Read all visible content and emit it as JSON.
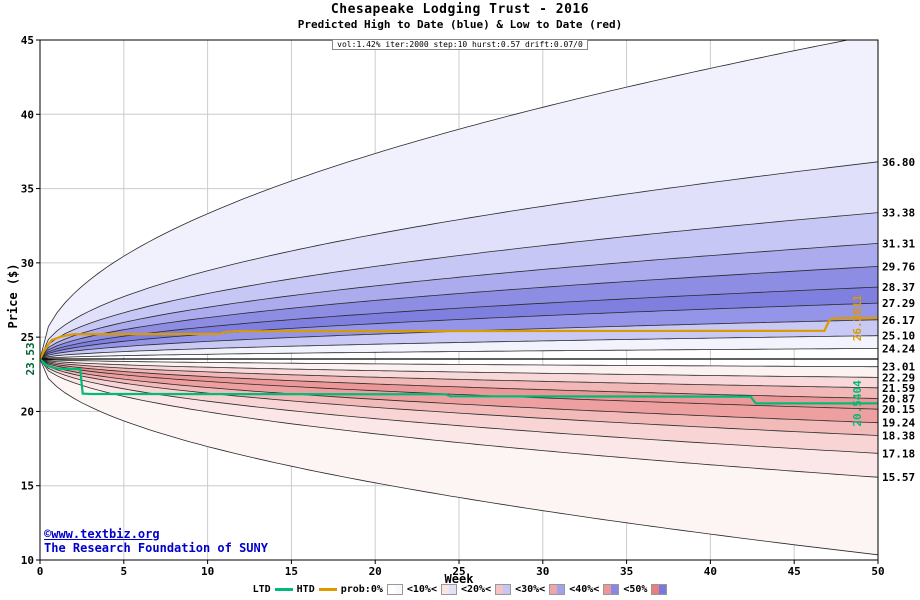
{
  "chart_data": {
    "type": "area",
    "title": "Chesapeake Lodging Trust - 2016",
    "subtitle": "Predicted High to Date (blue) &  Low to Date (red)",
    "params": "vol:1.42% iter:2000 step:10 hurst:0.57 drift:0.07/0",
    "xlabel": "Week",
    "ylabel": "Price ($)",
    "xlim": [
      0,
      50
    ],
    "ylim": [
      10,
      45
    ],
    "xticks": [
      0,
      5,
      10,
      15,
      20,
      25,
      30,
      35,
      40,
      45,
      50
    ],
    "yticks": [
      10,
      15,
      20,
      25,
      30,
      35,
      40,
      45
    ],
    "start_price": 23.53,
    "start_label": "23.53",
    "start_label_color": "#006633",
    "high_deciles": [
      {
        "label": "24.24",
        "value": 24.24
      },
      {
        "label": "25.10",
        "value": 25.1
      },
      {
        "label": "26.17",
        "value": 26.17
      },
      {
        "label": "27.29",
        "value": 27.29
      },
      {
        "label": "28.37",
        "value": 28.37
      },
      {
        "label": "29.76",
        "value": 29.76
      },
      {
        "label": "31.31",
        "value": 31.31
      },
      {
        "label": "33.38",
        "value": 33.38
      },
      {
        "label": "36.80",
        "value": 36.8
      }
    ],
    "high_extreme": 45.4,
    "low_deciles": [
      {
        "label": "23.01",
        "value": 23.01
      },
      {
        "label": "22.29",
        "value": 22.29
      },
      {
        "label": "21.59",
        "value": 21.59
      },
      {
        "label": "20.87",
        "value": 20.87
      },
      {
        "label": "20.15",
        "value": 20.15
      },
      {
        "label": "19.24",
        "value": 19.24
      },
      {
        "label": "18.38",
        "value": 18.38
      },
      {
        "label": "17.18",
        "value": 17.18
      },
      {
        "label": "15.57",
        "value": 15.57
      }
    ],
    "low_extreme": 10.35,
    "htd_line": {
      "name": "HTD",
      "final_label": "26.2811",
      "final_value": 26.2811,
      "color": "#dd9900",
      "points": [
        [
          0,
          23.53
        ],
        [
          0.3,
          24.2
        ],
        [
          0.7,
          24.8
        ],
        [
          1.3,
          25.05
        ],
        [
          2,
          25.2
        ],
        [
          10.7,
          25.22
        ],
        [
          11,
          25.33
        ],
        [
          11.8,
          25.4
        ],
        [
          46.8,
          25.43
        ],
        [
          47.1,
          26.15
        ],
        [
          47.5,
          26.28
        ],
        [
          50,
          26.2811
        ]
      ]
    },
    "ltd_line": {
      "name": "LTD",
      "final_label": "20.5404",
      "final_value": 20.5404,
      "color": "#00bb77",
      "points": [
        [
          0,
          23.53
        ],
        [
          0.4,
          23.1
        ],
        [
          0.9,
          22.9
        ],
        [
          1.4,
          22.86
        ],
        [
          2.4,
          22.85
        ],
        [
          2.55,
          21.2
        ],
        [
          3,
          21.17
        ],
        [
          24.2,
          21.15
        ],
        [
          24.5,
          21.02
        ],
        [
          42.4,
          21.0
        ],
        [
          42.7,
          20.55
        ],
        [
          43.5,
          20.54
        ],
        [
          50,
          20.5404
        ]
      ]
    },
    "band_colors": {
      "blue": [
        "#f3f3fd",
        "#c9c9f5",
        "#9494e8",
        "#7f7fe0",
        "#8d8de3",
        "#ababee",
        "#c7c7f5",
        "#e0e0fa",
        "#f1f1fd"
      ],
      "red": [
        "#fdf2f2",
        "#f8d8d8",
        "#f2b8b8",
        "#ec9898",
        "#ee9f9f",
        "#f3baba",
        "#f8d4d4",
        "#fbe7e7",
        "#fdf4f4"
      ]
    },
    "grid_color": "#cccccc",
    "boundary_color": "#2a2a2a",
    "start_line_color": "#000000"
  },
  "watermark": {
    "line1": "©www.textbiz.org",
    "line2": "The Research Foundation of SUNY"
  },
  "legend": {
    "ltd_label": "LTD",
    "htd_label": "HTD",
    "levels": [
      {
        "label": "prob:0%",
        "red": "#ffffff",
        "blue": "#f8f8fe"
      },
      {
        "label": "<10%<",
        "red": "#fbe6e6",
        "blue": "#e0e0f8"
      },
      {
        "label": "<20%<",
        "red": "#f4c4c4",
        "blue": "#c6c6f4"
      },
      {
        "label": "<30%<",
        "red": "#eea6a6",
        "blue": "#a2a2ea"
      },
      {
        "label": "<40%<",
        "red": "#ec9797",
        "blue": "#8888e4"
      },
      {
        "label": "<50%",
        "red": "#e87f7f",
        "blue": "#7878de"
      }
    ]
  }
}
